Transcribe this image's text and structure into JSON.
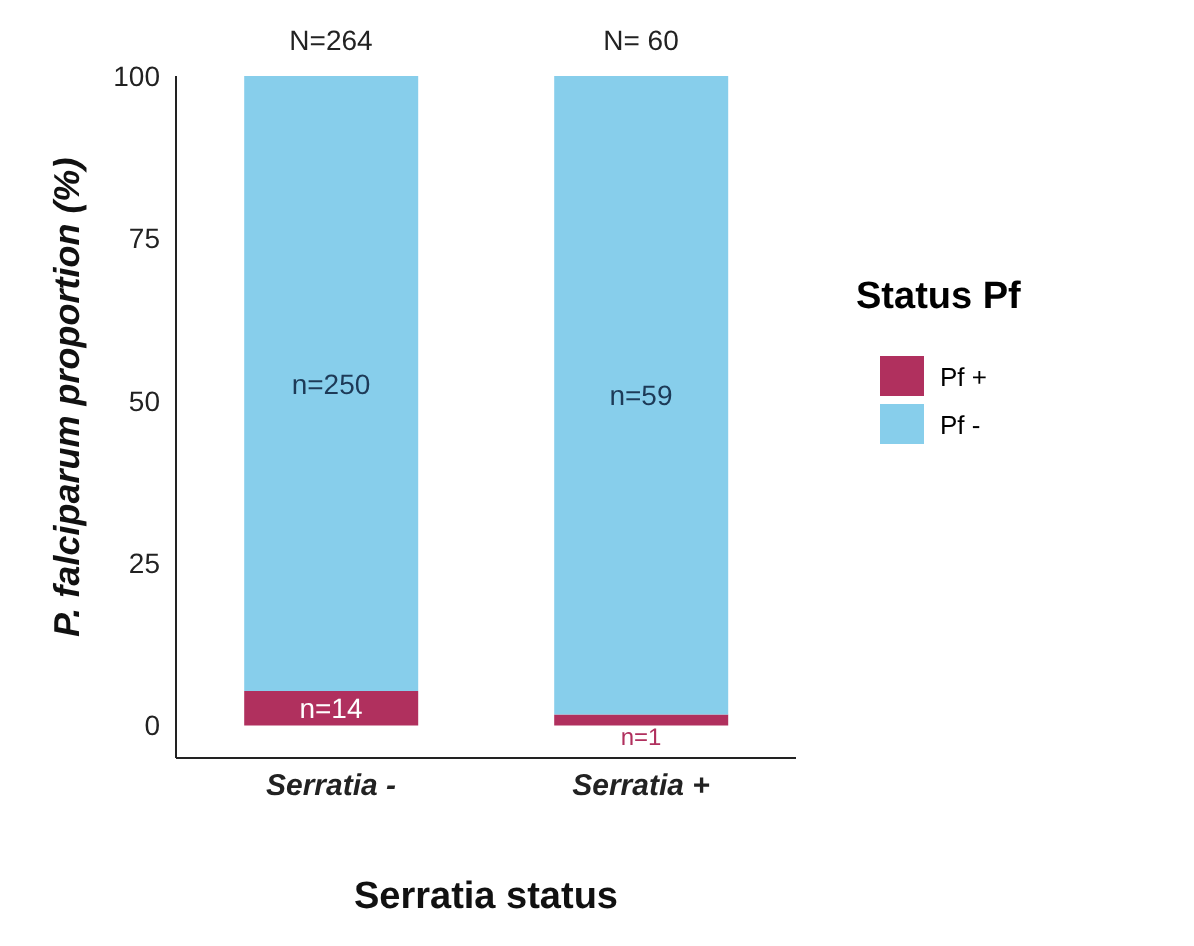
{
  "chart_data": {
    "type": "bar",
    "stacked": true,
    "xlabel": "Serratia status",
    "ylabel": "P. falciparum proportion (%)",
    "legend_title": "Status Pf",
    "categories": [
      "Serratia -",
      "Serratia +"
    ],
    "series": [
      {
        "name": "Pf +",
        "color": "#b0305e",
        "values": [
          5.3,
          1.7
        ]
      },
      {
        "name": "Pf -",
        "color": "#87ceeb",
        "values": [
          94.7,
          98.3
        ]
      }
    ],
    "annotations": [
      {
        "text": "N=264",
        "x": "Serratia -",
        "y": 100
      },
      {
        "text": "N= 60",
        "x": "Serratia +",
        "y": 100
      },
      "n=250",
      "n=59",
      {
        "text": "n=14",
        "x": "Serratia -",
        "y": 5.3
      },
      {
        "text": "n=1",
        "x": "Serratia +",
        "y": 1.7
      }
    ],
    "ylim": [
      -5,
      100
    ],
    "yticks": [
      0,
      25,
      50,
      75,
      100
    ],
    "grid": false,
    "legend": "right"
  }
}
